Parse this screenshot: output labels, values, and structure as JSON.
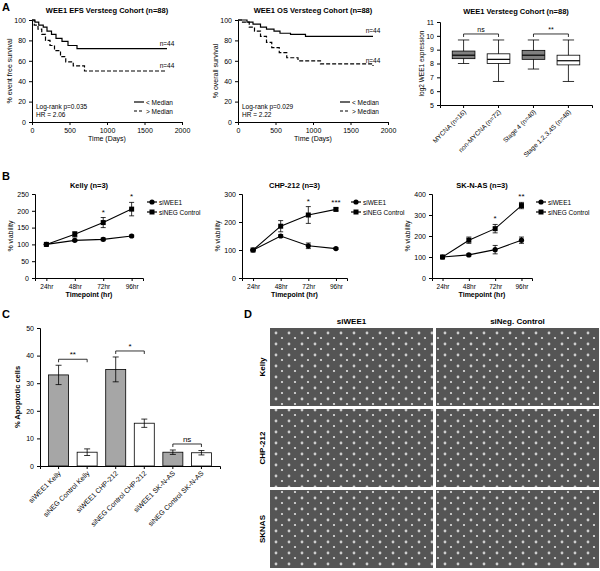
{
  "panel_labels": [
    "A",
    "B",
    "C",
    "D"
  ],
  "chart_data": [
    {
      "type": "survival",
      "title": "WEE1 EFS Versteeg Cohort (n=88)",
      "x_label": "Time (Days)",
      "y_label": "% event free survival",
      "xlim": [
        0,
        2000
      ],
      "xticks": [
        0,
        500,
        1000,
        1500,
        2000
      ],
      "ylim": [
        0,
        100
      ],
      "yticks": [
        0,
        20,
        40,
        60,
        80,
        100
      ],
      "legend": "bottom-right",
      "annotations": [
        "Log-rank p=0.035",
        "HR = 2.06"
      ],
      "series": [
        {
          "name": "< Median",
          "color": "#000000",
          "line_style": "solid",
          "end_label": "n=44",
          "x": [
            0,
            40,
            90,
            150,
            200,
            260,
            320,
            400,
            480,
            600,
            1800
          ],
          "values": [
            100,
            98,
            95,
            93,
            89,
            86,
            82,
            79,
            75,
            72,
            72
          ]
        },
        {
          "name": "> Median",
          "color": "#000000",
          "line_style": "dashed",
          "end_label": "n=44",
          "x": [
            0,
            30,
            80,
            130,
            180,
            240,
            300,
            380,
            450,
            550,
            700,
            1800
          ],
          "values": [
            100,
            95,
            91,
            86,
            80,
            75,
            70,
            64,
            59,
            55,
            50,
            50
          ]
        }
      ]
    },
    {
      "type": "survival",
      "title": "WEE1 OS Versteeg Cohort (n=88)",
      "x_label": "Time (Days)",
      "y_label": "% overall survival",
      "xlim": [
        0,
        2000
      ],
      "xticks": [
        0,
        500,
        1000,
        1500,
        2000
      ],
      "ylim": [
        0,
        100
      ],
      "yticks": [
        0,
        20,
        40,
        60,
        80,
        100
      ],
      "legend": "bottom-right",
      "annotations": [
        "Log-rank p=0.029",
        "HR = 2.22"
      ],
      "series": [
        {
          "name": "< Median",
          "color": "#000000",
          "line_style": "solid",
          "end_label": "n=44",
          "x": [
            0,
            120,
            200,
            300,
            380,
            480,
            560,
            700,
            900,
            1800
          ],
          "values": [
            100,
            98,
            96,
            93,
            91,
            89,
            87,
            86,
            84,
            84
          ]
        },
        {
          "name": "> Median",
          "color": "#000000",
          "line_style": "dashed",
          "end_label": "n=44",
          "x": [
            0,
            60,
            150,
            220,
            300,
            380,
            450,
            550,
            650,
            800,
            1100,
            1800
          ],
          "values": [
            100,
            98,
            93,
            89,
            84,
            78,
            73,
            68,
            63,
            60,
            57,
            55
          ]
        }
      ]
    },
    {
      "type": "box",
      "title": "WEE1 Versteeg Cohort (n=88)",
      "y_label": "log2 WEE1 expression",
      "categories": [
        "MYCNA (n=16)",
        "non-MYCNA (n=72)",
        "Stage 4 (n=40)",
        "Stage 1,2,3,4S (n=48)"
      ],
      "min": [
        8.0,
        6.7,
        7.6,
        6.7
      ],
      "q1": [
        8.35,
        8.0,
        8.3,
        7.9
      ],
      "median": [
        8.6,
        8.3,
        8.6,
        8.2
      ],
      "q3": [
        8.9,
        8.7,
        8.95,
        8.6
      ],
      "max": [
        9.7,
        9.7,
        9.7,
        9.7
      ],
      "colors": [
        "#808080",
        "#ffffff",
        "#808080",
        "#ffffff"
      ],
      "ylim": [
        5,
        11
      ],
      "yticks": [
        5,
        6,
        7,
        8,
        9,
        10,
        11
      ],
      "annotations": [
        {
          "text": "ns",
          "between": [
            "MYCNA (n=16)",
            "non-MYCNA (n=72)"
          ]
        },
        {
          "text": "**",
          "between": [
            "Stage 4 (n=40)",
            "Stage 1,2,3,4S (n=48)"
          ]
        }
      ]
    },
    {
      "type": "line",
      "title": "Kelly (n=3)",
      "x_label": "Timepoint (hr)",
      "y_label": "% viability",
      "categories": [
        "24hr",
        "48hr",
        "72hr",
        "96hr"
      ],
      "ylim": [
        0,
        250
      ],
      "yticks": [
        0,
        50,
        100,
        150,
        200,
        250
      ],
      "legend": "right",
      "series": [
        {
          "name": "siWEE1",
          "color": "#000000",
          "marker": "circle",
          "values": [
            100,
            112,
            115,
            125
          ],
          "errors": [
            0,
            3,
            4,
            3
          ]
        },
        {
          "name": "siNEG Control",
          "color": "#000000",
          "marker": "square",
          "values": [
            100,
            130,
            165,
            205
          ],
          "errors": [
            0,
            8,
            15,
            20
          ]
        }
      ],
      "annotations": [
        {
          "text": "*",
          "x": "72hr"
        },
        {
          "text": "*",
          "x": "96hr"
        }
      ]
    },
    {
      "type": "line",
      "title": "CHP-212 (n=3)",
      "x_label": "Timepoint (hr)",
      "y_label": "% viability",
      "categories": [
        "24hr",
        "48hr",
        "72hr",
        "96hr"
      ],
      "ylim": [
        0,
        300
      ],
      "yticks": [
        0,
        100,
        200,
        300
      ],
      "legend": "right",
      "series": [
        {
          "name": "siWEE1",
          "color": "#000000",
          "marker": "circle",
          "values": [
            100,
            150,
            115,
            105
          ],
          "errors": [
            0,
            5,
            10,
            3
          ]
        },
        {
          "name": "siNEG Control",
          "color": "#000000",
          "marker": "square",
          "values": [
            100,
            185,
            225,
            245
          ],
          "errors": [
            0,
            20,
            30,
            5
          ]
        }
      ],
      "annotations": [
        {
          "text": "*",
          "x": "72hr"
        },
        {
          "text": "***",
          "x": "96hr"
        }
      ]
    },
    {
      "type": "line",
      "title": "SK-N-AS (n=3)",
      "x_label": "Timepoint (hr)",
      "y_label": "% viability",
      "categories": [
        "24hr",
        "48hr",
        "72hr",
        "96hr"
      ],
      "ylim": [
        0,
        400
      ],
      "yticks": [
        0,
        100,
        200,
        300,
        400
      ],
      "legend": "right",
      "series": [
        {
          "name": "siWEE1",
          "color": "#000000",
          "marker": "circle",
          "values": [
            100,
            110,
            135,
            180
          ],
          "errors": [
            0,
            5,
            20,
            15
          ]
        },
        {
          "name": "siNEG Control",
          "color": "#000000",
          "marker": "square",
          "values": [
            100,
            180,
            235,
            345
          ],
          "errors": [
            0,
            15,
            20,
            15
          ]
        }
      ],
      "annotations": [
        {
          "text": "*",
          "x": "72hr"
        },
        {
          "text": "**",
          "x": "96hr"
        }
      ]
    },
    {
      "type": "bar",
      "y_label": "% Apoptotic cells",
      "categories": [
        "siWEE1 Kelly",
        "siNEG Control Kelly",
        "siWEE1 CHP-212",
        "siNEG Control CHP-212",
        "siWEE1 SK-N-AS",
        "siNEG Control SK-N-AS"
      ],
      "values": [
        33,
        5,
        35,
        15.5,
        5,
        4.8
      ],
      "errors": [
        3.5,
        1.2,
        4.5,
        1.5,
        0.8,
        0.8
      ],
      "colors": [
        "#a6a6a6",
        "#ffffff",
        "#a6a6a6",
        "#ffffff",
        "#a6a6a6",
        "#ffffff"
      ],
      "ylim": [
        0,
        50
      ],
      "yticks": [
        0,
        10,
        20,
        30,
        40,
        50
      ],
      "annotations": [
        {
          "text": "**",
          "between": [
            "siWEE1 Kelly",
            "siNEG Control Kelly"
          ]
        },
        {
          "text": "*",
          "between": [
            "siWEE1 CHP-212",
            "siNEG Control CHP-212"
          ]
        },
        {
          "text": "ns",
          "between": [
            "siWEE1 SK-N-AS",
            "siNEG Control SK-N-AS"
          ]
        }
      ]
    }
  ],
  "image_grid": {
    "columns": [
      "siWEE1",
      "siNeg. Control"
    ],
    "rows": [
      "Kelly",
      "CHP-212",
      "SKNAS"
    ]
  }
}
